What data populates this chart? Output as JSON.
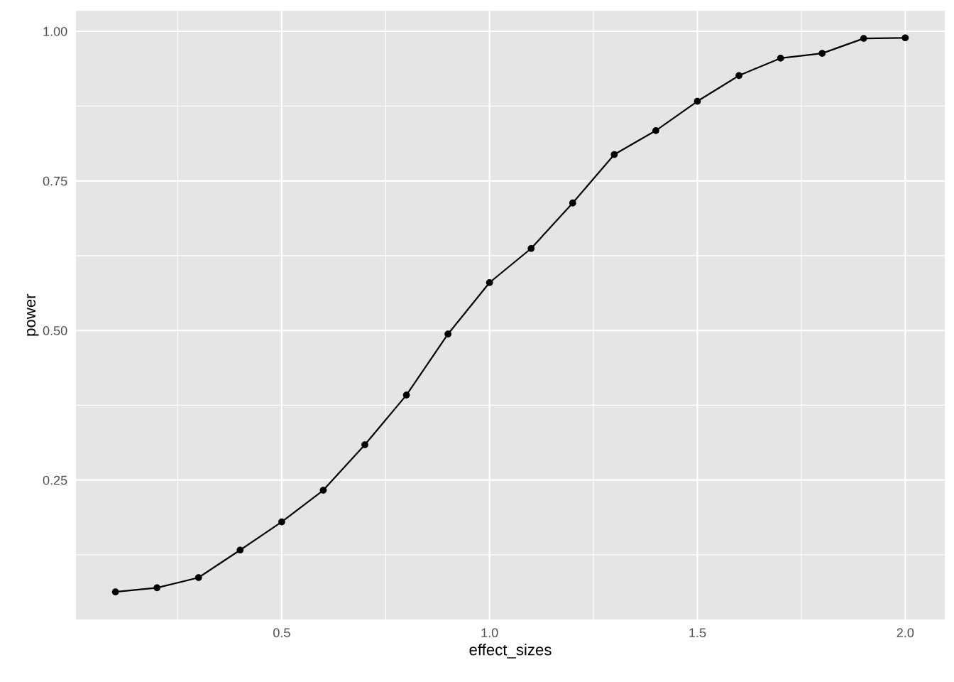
{
  "chart_data": {
    "type": "line",
    "xlabel": "effect_sizes",
    "ylabel": "power",
    "x": [
      0.1,
      0.2,
      0.3,
      0.4,
      0.5,
      0.6,
      0.7,
      0.8,
      0.9,
      1.0,
      1.1,
      1.2,
      1.3,
      1.4,
      1.5,
      1.6,
      1.7,
      1.8,
      1.9,
      2.0
    ],
    "series": [
      {
        "color": "#000000",
        "values": [
          0.063,
          0.07,
          0.087,
          0.133,
          0.18,
          0.233,
          0.309,
          0.392,
          0.494,
          0.58,
          0.637,
          0.713,
          0.794,
          0.834,
          0.883,
          0.926,
          0.955,
          0.963,
          0.988,
          0.989
        ]
      }
    ],
    "xlim": [
      0.005,
      2.095
    ],
    "ylim": [
      0.017,
      1.034
    ],
    "xticks": [
      0.5,
      {
        "value": 1.0,
        "label": "1.0"
      },
      1.5,
      {
        "value": 2.0,
        "label": "2.0"
      }
    ],
    "yticks": [
      {
        "value": 0.25,
        "label": "0.25"
      },
      {
        "value": 0.5,
        "label": "0.50"
      },
      0.75,
      {
        "value": 1.0,
        "label": "1.00"
      }
    ],
    "grid": true,
    "marker": "circle",
    "line_style": "solid"
  }
}
